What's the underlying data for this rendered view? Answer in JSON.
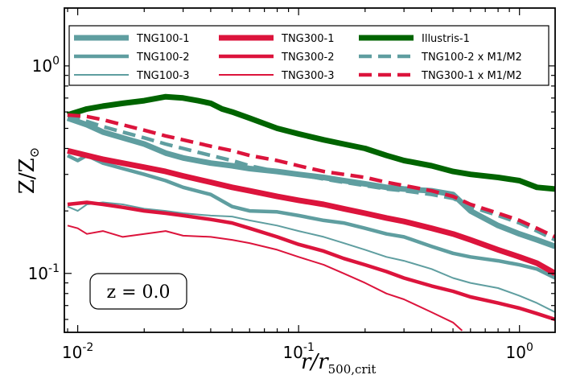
{
  "chart_data": {
    "type": "line",
    "title": "",
    "xlabel_main": "r/r",
    "xlabel_sub": "500,crit",
    "ylabel_main": "Z/Z",
    "ylabel_sub": "⊙",
    "xscale": "log",
    "yscale": "log",
    "xlim": [
      0.0087,
      1.45
    ],
    "ylim": [
      0.052,
      1.9
    ],
    "xticks": [
      {
        "value": 0.01,
        "label": "10",
        "exp": "-2"
      },
      {
        "value": 0.1,
        "label": "10",
        "exp": "-1"
      },
      {
        "value": 1,
        "label": "10",
        "exp": "0"
      }
    ],
    "yticks": [
      {
        "value": 0.1,
        "label": "10",
        "exp": "-1"
      },
      {
        "value": 1,
        "label": "10",
        "exp": "0"
      }
    ],
    "annotation": "z = 0.0",
    "legend_position": "top",
    "series": [
      {
        "name": "TNG100-1",
        "color": "#5f9ea0",
        "width": 7,
        "dash": "",
        "x": [
          0.009,
          0.011,
          0.013,
          0.016,
          0.02,
          0.025,
          0.03,
          0.04,
          0.05,
          0.06,
          0.08,
          0.1,
          0.13,
          0.16,
          0.2,
          0.25,
          0.3,
          0.4,
          0.5,
          0.6,
          0.8,
          1.0,
          1.2,
          1.45
        ],
        "y": [
          0.56,
          0.52,
          0.48,
          0.45,
          0.42,
          0.38,
          0.36,
          0.34,
          0.33,
          0.32,
          0.31,
          0.3,
          0.29,
          0.28,
          0.27,
          0.26,
          0.255,
          0.25,
          0.24,
          0.2,
          0.17,
          0.155,
          0.145,
          0.135
        ]
      },
      {
        "name": "TNG100-2",
        "color": "#5f9ea0",
        "width": 4.5,
        "dash": "",
        "x": [
          0.009,
          0.01,
          0.011,
          0.013,
          0.016,
          0.02,
          0.025,
          0.03,
          0.04,
          0.05,
          0.06,
          0.08,
          0.1,
          0.13,
          0.16,
          0.2,
          0.25,
          0.3,
          0.4,
          0.5,
          0.6,
          0.8,
          1.0,
          1.2,
          1.45
        ],
        "y": [
          0.37,
          0.35,
          0.37,
          0.34,
          0.32,
          0.3,
          0.28,
          0.26,
          0.24,
          0.21,
          0.2,
          0.198,
          0.19,
          0.18,
          0.175,
          0.165,
          0.155,
          0.15,
          0.135,
          0.125,
          0.12,
          0.115,
          0.11,
          0.105,
          0.095
        ]
      },
      {
        "name": "TNG100-3",
        "color": "#5f9ea0",
        "width": 2,
        "dash": "",
        "x": [
          0.009,
          0.01,
          0.011,
          0.013,
          0.016,
          0.02,
          0.025,
          0.03,
          0.04,
          0.05,
          0.06,
          0.08,
          0.1,
          0.13,
          0.16,
          0.2,
          0.25,
          0.3,
          0.4,
          0.5,
          0.6,
          0.8,
          1.0,
          1.2,
          1.45
        ],
        "y": [
          0.21,
          0.2,
          0.215,
          0.22,
          0.215,
          0.205,
          0.2,
          0.195,
          0.19,
          0.188,
          0.18,
          0.17,
          0.16,
          0.15,
          0.14,
          0.13,
          0.12,
          0.115,
          0.105,
          0.095,
          0.09,
          0.085,
          0.078,
          0.072,
          0.065
        ]
      },
      {
        "name": "TNG300-1",
        "color": "#dc143c",
        "width": 7,
        "dash": "",
        "x": [
          0.009,
          0.011,
          0.013,
          0.016,
          0.02,
          0.025,
          0.03,
          0.04,
          0.05,
          0.06,
          0.08,
          0.1,
          0.13,
          0.16,
          0.2,
          0.25,
          0.3,
          0.4,
          0.5,
          0.6,
          0.8,
          1.0,
          1.2,
          1.45
        ],
        "y": [
          0.39,
          0.37,
          0.355,
          0.34,
          0.325,
          0.31,
          0.295,
          0.275,
          0.26,
          0.25,
          0.235,
          0.225,
          0.215,
          0.205,
          0.195,
          0.185,
          0.178,
          0.165,
          0.155,
          0.145,
          0.13,
          0.12,
          0.112,
          0.1
        ]
      },
      {
        "name": "TNG300-2",
        "color": "#dc143c",
        "width": 4.5,
        "dash": "",
        "x": [
          0.009,
          0.011,
          0.013,
          0.016,
          0.02,
          0.025,
          0.03,
          0.04,
          0.05,
          0.06,
          0.08,
          0.1,
          0.13,
          0.16,
          0.2,
          0.25,
          0.3,
          0.4,
          0.5,
          0.6,
          0.8,
          1.0,
          1.2,
          1.45
        ],
        "y": [
          0.215,
          0.22,
          0.215,
          0.208,
          0.2,
          0.195,
          0.19,
          0.182,
          0.175,
          0.165,
          0.15,
          0.138,
          0.128,
          0.118,
          0.11,
          0.102,
          0.095,
          0.087,
          0.082,
          0.077,
          0.072,
          0.068,
          0.064,
          0.06
        ]
      },
      {
        "name": "TNG300-3",
        "color": "#dc143c",
        "width": 2,
        "dash": "",
        "x": [
          0.009,
          0.01,
          0.011,
          0.013,
          0.016,
          0.02,
          0.025,
          0.03,
          0.04,
          0.05,
          0.06,
          0.08,
          0.1,
          0.13,
          0.16,
          0.2,
          0.25,
          0.3,
          0.4,
          0.5,
          0.55
        ],
        "y": [
          0.17,
          0.165,
          0.155,
          0.16,
          0.15,
          0.155,
          0.16,
          0.152,
          0.15,
          0.145,
          0.14,
          0.13,
          0.12,
          0.11,
          0.1,
          0.09,
          0.08,
          0.075,
          0.065,
          0.058,
          0.053
        ]
      },
      {
        "name": "Illustris-1",
        "color": "#006400",
        "width": 7,
        "dash": "",
        "x": [
          0.009,
          0.011,
          0.013,
          0.016,
          0.02,
          0.025,
          0.03,
          0.035,
          0.04,
          0.045,
          0.05,
          0.06,
          0.08,
          0.1,
          0.13,
          0.16,
          0.2,
          0.25,
          0.3,
          0.4,
          0.5,
          0.6,
          0.8,
          1.0,
          1.2,
          1.45
        ],
        "y": [
          0.58,
          0.62,
          0.64,
          0.66,
          0.68,
          0.71,
          0.7,
          0.68,
          0.66,
          0.62,
          0.6,
          0.56,
          0.5,
          0.47,
          0.44,
          0.42,
          0.4,
          0.37,
          0.35,
          0.33,
          0.31,
          0.3,
          0.29,
          0.28,
          0.26,
          0.255
        ]
      },
      {
        "name": "TNG100-2 x M1/M2",
        "color": "#5f9ea0",
        "width": 4.5,
        "dash": "16,8",
        "x": [
          0.009,
          0.011,
          0.013,
          0.016,
          0.02,
          0.025,
          0.03,
          0.04,
          0.05,
          0.06,
          0.08,
          0.1,
          0.13,
          0.16,
          0.2,
          0.25,
          0.3,
          0.4,
          0.5,
          0.6,
          0.8,
          1.0,
          1.2,
          1.45
        ],
        "y": [
          0.58,
          0.54,
          0.51,
          0.48,
          0.45,
          0.42,
          0.4,
          0.37,
          0.35,
          0.33,
          0.31,
          0.3,
          0.285,
          0.275,
          0.265,
          0.255,
          0.25,
          0.24,
          0.23,
          0.21,
          0.19,
          0.175,
          0.16,
          0.145
        ]
      },
      {
        "name": "TNG300-1 x M1/M2",
        "color": "#dc143c",
        "width": 4.5,
        "dash": "16,8",
        "x": [
          0.009,
          0.011,
          0.013,
          0.016,
          0.02,
          0.025,
          0.03,
          0.04,
          0.05,
          0.06,
          0.08,
          0.1,
          0.13,
          0.16,
          0.2,
          0.25,
          0.3,
          0.4,
          0.5,
          0.6,
          0.8,
          1.0,
          1.2,
          1.45
        ],
        "y": [
          0.58,
          0.57,
          0.55,
          0.52,
          0.49,
          0.46,
          0.44,
          0.41,
          0.39,
          0.37,
          0.35,
          0.33,
          0.31,
          0.3,
          0.29,
          0.275,
          0.265,
          0.25,
          0.235,
          0.215,
          0.195,
          0.18,
          0.165,
          0.15
        ]
      }
    ],
    "legend_entries": [
      {
        "label": "TNG100-1",
        "series": 0
      },
      {
        "label": "TNG100-2",
        "series": 1
      },
      {
        "label": "TNG100-3",
        "series": 2
      },
      {
        "label": "TNG300-1",
        "series": 3
      },
      {
        "label": "TNG300-2",
        "series": 4
      },
      {
        "label": "TNG300-3",
        "series": 5
      },
      {
        "label": "Illustris-1",
        "series": 6
      },
      {
        "label": "TNG100-2 x M1/M2",
        "series": 7
      },
      {
        "label": "TNG300-1 x M1/M2",
        "series": 8
      }
    ]
  }
}
